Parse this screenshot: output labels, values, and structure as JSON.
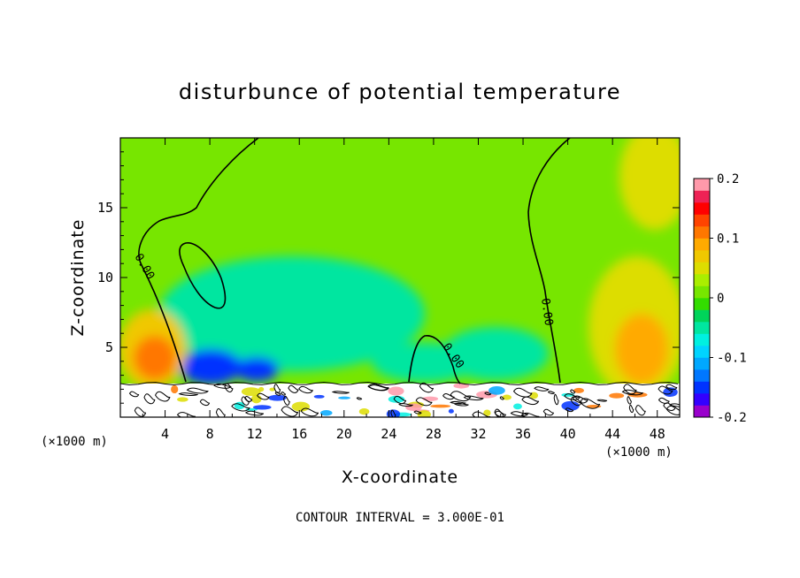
{
  "chart_data": {
    "type": "heatmap",
    "title": "disturbunce of potential temperature",
    "xlabel": "X-coordinate",
    "ylabel": "Z-coordinate",
    "x_unit_label": "(×1000 m)",
    "xlim": [
      0,
      50
    ],
    "ylim": [
      0,
      20
    ],
    "x_ticks": [
      4,
      8,
      12,
      16,
      20,
      24,
      28,
      32,
      36,
      40,
      44,
      48
    ],
    "y_ticks": [
      5,
      10,
      15
    ],
    "footnote": "CONTOUR INTERVAL = 3.000E-01",
    "contour_labels": [
      "0.00",
      "0.00",
      "0.00"
    ],
    "colorbar": {
      "range": [
        -0.2,
        0.2
      ],
      "tick_labels": [
        "0.2",
        "0.1",
        "0",
        "-0.1",
        "-0.2"
      ],
      "tick_values": [
        0.2,
        0.1,
        0,
        -0.1,
        -0.2
      ],
      "colors": [
        "#9900cc",
        "#3300ff",
        "#0033ff",
        "#0077ff",
        "#00a8ff",
        "#00d4ff",
        "#00f0e0",
        "#00e6a0",
        "#00d45a",
        "#33dd00",
        "#77e600",
        "#aaee00",
        "#dddd00",
        "#f0c800",
        "#ffaa00",
        "#ff7700",
        "#ff4400",
        "#ff0000",
        "#ee2255",
        "#ff99aa"
      ]
    },
    "fields": {
      "background_value": 0.02,
      "plume_left_value": 0.12,
      "plume_right_value": 0.08,
      "cold_pool_value": -0.06,
      "deep_cold_value": -0.16
    }
  }
}
